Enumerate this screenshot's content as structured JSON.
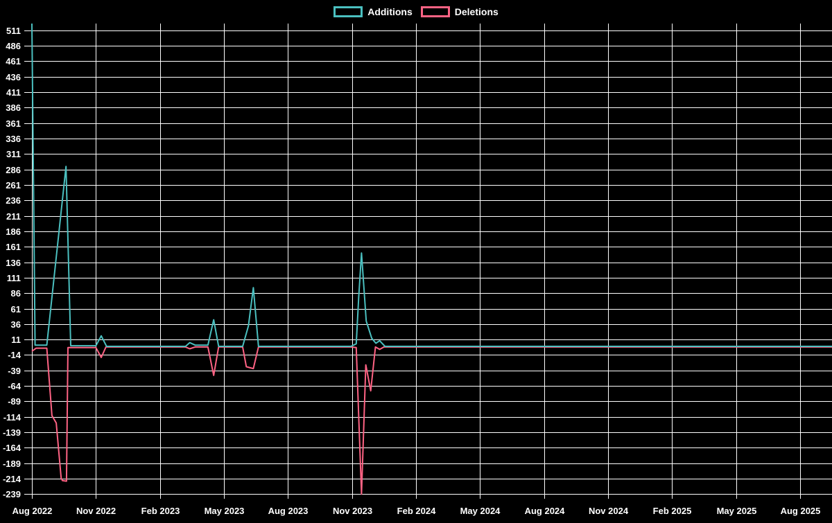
{
  "page": {
    "background": "#000000",
    "text_color": "#ffffff"
  },
  "legend": {
    "items": [
      {
        "label": "Additions",
        "color": "#4bc0c0"
      },
      {
        "label": "Deletions",
        "color": "#ff6384"
      }
    ]
  },
  "chart_data": {
    "type": "line",
    "title": "",
    "xlabel": "",
    "ylabel": "",
    "legend_position": "top",
    "grid": true,
    "background": "#000000",
    "grid_color": "#ffffff",
    "text_color": "#ffffff",
    "x_unit": "months after Aug 2022 (weekly commit data)",
    "x_range": [
      0,
      37.5
    ],
    "y_range": [
      -239,
      522
    ],
    "x_ticks": {
      "labels": [
        "Aug 2022",
        "Nov 2022",
        "Feb 2023",
        "May 2023",
        "Aug 2023",
        "Nov 2023",
        "Feb 2024",
        "May 2024",
        "Aug 2024",
        "Nov 2024",
        "Feb 2025",
        "May 2025",
        "Aug 2025"
      ],
      "positions": [
        0,
        3,
        6,
        9,
        12,
        15,
        18,
        21,
        24,
        27,
        30,
        33,
        36
      ]
    },
    "y_tick_values": [
      511,
      486,
      461,
      436,
      411,
      386,
      361,
      336,
      311,
      286,
      261,
      236,
      211,
      186,
      161,
      136,
      111,
      86,
      61,
      36,
      11,
      -14,
      -39,
      -64,
      -89,
      -114,
      -139,
      -164,
      -189,
      -214,
      -239
    ],
    "series": [
      {
        "name": "Additions",
        "color": "#4bc0c0",
        "points": [
          [
            0,
            522
          ],
          [
            0.15,
            2
          ],
          [
            0.7,
            2
          ],
          [
            1.6,
            291
          ],
          [
            1.82,
            1
          ],
          [
            3.0,
            1
          ],
          [
            3.25,
            17
          ],
          [
            3.5,
            0
          ],
          [
            7.2,
            0
          ],
          [
            7.4,
            6
          ],
          [
            7.65,
            2
          ],
          [
            8.25,
            2
          ],
          [
            8.52,
            43
          ],
          [
            8.75,
            0
          ],
          [
            9.88,
            0
          ],
          [
            10.15,
            33
          ],
          [
            10.38,
            95
          ],
          [
            10.62,
            0
          ],
          [
            14.95,
            0
          ],
          [
            15.2,
            4
          ],
          [
            15.32,
            80
          ],
          [
            15.45,
            151
          ],
          [
            15.67,
            41
          ],
          [
            15.93,
            13
          ],
          [
            16.12,
            5
          ],
          [
            16.3,
            9
          ],
          [
            16.55,
            0
          ],
          [
            37.5,
            0
          ]
        ]
      },
      {
        "name": "Deletions",
        "color": "#ff6384",
        "points": [
          [
            0,
            -8
          ],
          [
            0.2,
            -3
          ],
          [
            0.7,
            -3
          ],
          [
            0.94,
            -112
          ],
          [
            1.14,
            -124
          ],
          [
            1.37,
            -213
          ],
          [
            1.43,
            -217
          ],
          [
            1.62,
            -218
          ],
          [
            1.69,
            -2
          ],
          [
            3.0,
            -2
          ],
          [
            3.25,
            -18
          ],
          [
            3.47,
            -1
          ],
          [
            7.2,
            -1
          ],
          [
            7.4,
            -4
          ],
          [
            7.65,
            -1
          ],
          [
            8.25,
            -1
          ],
          [
            8.52,
            -47
          ],
          [
            8.75,
            -1
          ],
          [
            9.88,
            -1
          ],
          [
            10.05,
            -33
          ],
          [
            10.38,
            -36
          ],
          [
            10.62,
            -1
          ],
          [
            14.95,
            -1
          ],
          [
            15.2,
            -2
          ],
          [
            15.45,
            -239
          ],
          [
            15.65,
            -30
          ],
          [
            15.88,
            -72
          ],
          [
            16.1,
            -1
          ],
          [
            16.3,
            -5
          ],
          [
            16.5,
            -1
          ],
          [
            37.5,
            -1
          ]
        ]
      }
    ]
  }
}
